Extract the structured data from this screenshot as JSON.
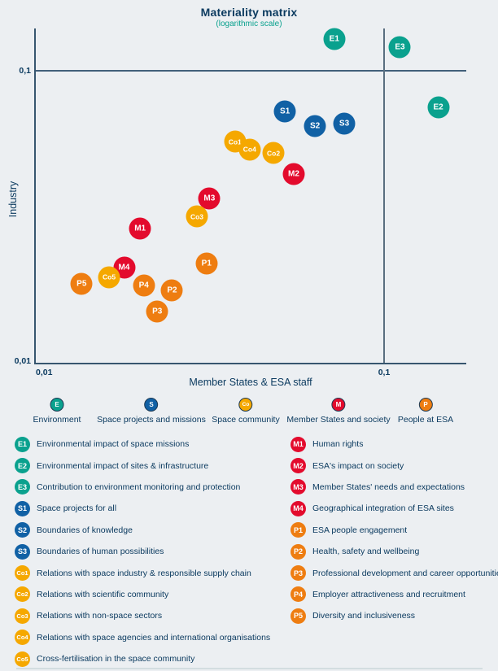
{
  "chart": {
    "title": "Materiality matrix",
    "subtitle": "(logarithmic scale)",
    "x_axis_label": "Member States & ESA staff",
    "y_axis_label": "Industry",
    "x_ticks": [
      "0,01",
      "0,1"
    ],
    "y_ticks": [
      "0,01",
      "0,1"
    ]
  },
  "chart_data": {
    "type": "scatter",
    "title": "Materiality matrix (logarithmic scale)",
    "xlabel": "Member States & ESA staff",
    "ylabel": "Industry",
    "x_scale": "log",
    "y_scale": "log",
    "xlim": [
      0.01,
      0.17
    ],
    "ylim": [
      0.01,
      0.17
    ],
    "grid": "reference lines at x=0.1 and y=0.1",
    "points": [
      {
        "id": "E1",
        "category": "E",
        "x": 0.072,
        "y": 0.128
      },
      {
        "id": "E3",
        "category": "E",
        "x": 0.111,
        "y": 0.12
      },
      {
        "id": "E2",
        "category": "E",
        "x": 0.143,
        "y": 0.075
      },
      {
        "id": "S1",
        "category": "S",
        "x": 0.052,
        "y": 0.0726
      },
      {
        "id": "S2",
        "category": "S",
        "x": 0.0634,
        "y": 0.0647
      },
      {
        "id": "S3",
        "category": "S",
        "x": 0.0769,
        "y": 0.0659
      },
      {
        "id": "Co1",
        "category": "Co",
        "x": 0.0374,
        "y": 0.0573
      },
      {
        "id": "Co4",
        "category": "Co",
        "x": 0.0412,
        "y": 0.0538
      },
      {
        "id": "Co2",
        "category": "Co",
        "x": 0.0482,
        "y": 0.0524
      },
      {
        "id": "M2",
        "category": "M",
        "x": 0.0551,
        "y": 0.0444
      },
      {
        "id": "M3",
        "category": "M",
        "x": 0.0316,
        "y": 0.0366
      },
      {
        "id": "Co3",
        "category": "Co",
        "x": 0.0291,
        "y": 0.0318
      },
      {
        "id": "M1",
        "category": "M",
        "x": 0.02,
        "y": 0.0289
      },
      {
        "id": "P1",
        "category": "P",
        "x": 0.031,
        "y": 0.022
      },
      {
        "id": "M4",
        "category": "M",
        "x": 0.018,
        "y": 0.0213
      },
      {
        "id": "Co5",
        "category": "Co",
        "x": 0.0163,
        "y": 0.0197
      },
      {
        "id": "P5",
        "category": "P",
        "x": 0.0136,
        "y": 0.0187
      },
      {
        "id": "P4",
        "category": "P",
        "x": 0.0205,
        "y": 0.0185
      },
      {
        "id": "P2",
        "category": "P",
        "x": 0.0247,
        "y": 0.0178
      },
      {
        "id": "P3",
        "category": "P",
        "x": 0.0224,
        "y": 0.0151
      }
    ]
  },
  "categories": [
    {
      "id": "E",
      "label": "Environment",
      "color": "#0aa18e"
    },
    {
      "id": "S",
      "label": "Space projects and missions",
      "color": "#1161a5"
    },
    {
      "id": "Co",
      "label": "Space community",
      "color": "#f5a800"
    },
    {
      "id": "M",
      "label": "Member States and society",
      "color": "#e30b2d"
    },
    {
      "id": "P",
      "label": "People at ESA",
      "color": "#ee7d11"
    }
  ],
  "items_left": [
    {
      "id": "E1",
      "text": "Environmental impact of space missions"
    },
    {
      "id": "E2",
      "text": "Environmental impact of sites & infrastructure"
    },
    {
      "id": "E3",
      "text": "Contribution to environment monitoring and protection"
    },
    {
      "id": "S1",
      "text": "Space projects for all"
    },
    {
      "id": "S2",
      "text": "Boundaries of knowledge"
    },
    {
      "id": "S3",
      "text": "Boundaries of human possibilities"
    },
    {
      "id": "Co1",
      "text": "Relations with space industry & responsible supply chain"
    },
    {
      "id": "Co2",
      "text": "Relations with scientific community"
    },
    {
      "id": "Co3",
      "text": "Relations with non-space sectors"
    },
    {
      "id": "Co4",
      "text": "Relations with space agencies and international organisations"
    },
    {
      "id": "Co5",
      "text": "Cross-fertilisation in the space community"
    }
  ],
  "items_right": [
    {
      "id": "M1",
      "text": "Human rights"
    },
    {
      "id": "M2",
      "text": "ESA's impact on society"
    },
    {
      "id": "M3",
      "text": "Member States' needs and expectations"
    },
    {
      "id": "M4",
      "text": "Geographical integration of ESA sites"
    },
    {
      "id": "P1",
      "text": "ESA people engagement"
    },
    {
      "id": "P2",
      "text": "Health, safety and wellbeing"
    },
    {
      "id": "P3",
      "text": "Professional development and career opportunities"
    },
    {
      "id": "P4",
      "text": "Employer attractiveness and recruitment"
    },
    {
      "id": "P5",
      "text": "Diversity and inclusiveness"
    }
  ]
}
